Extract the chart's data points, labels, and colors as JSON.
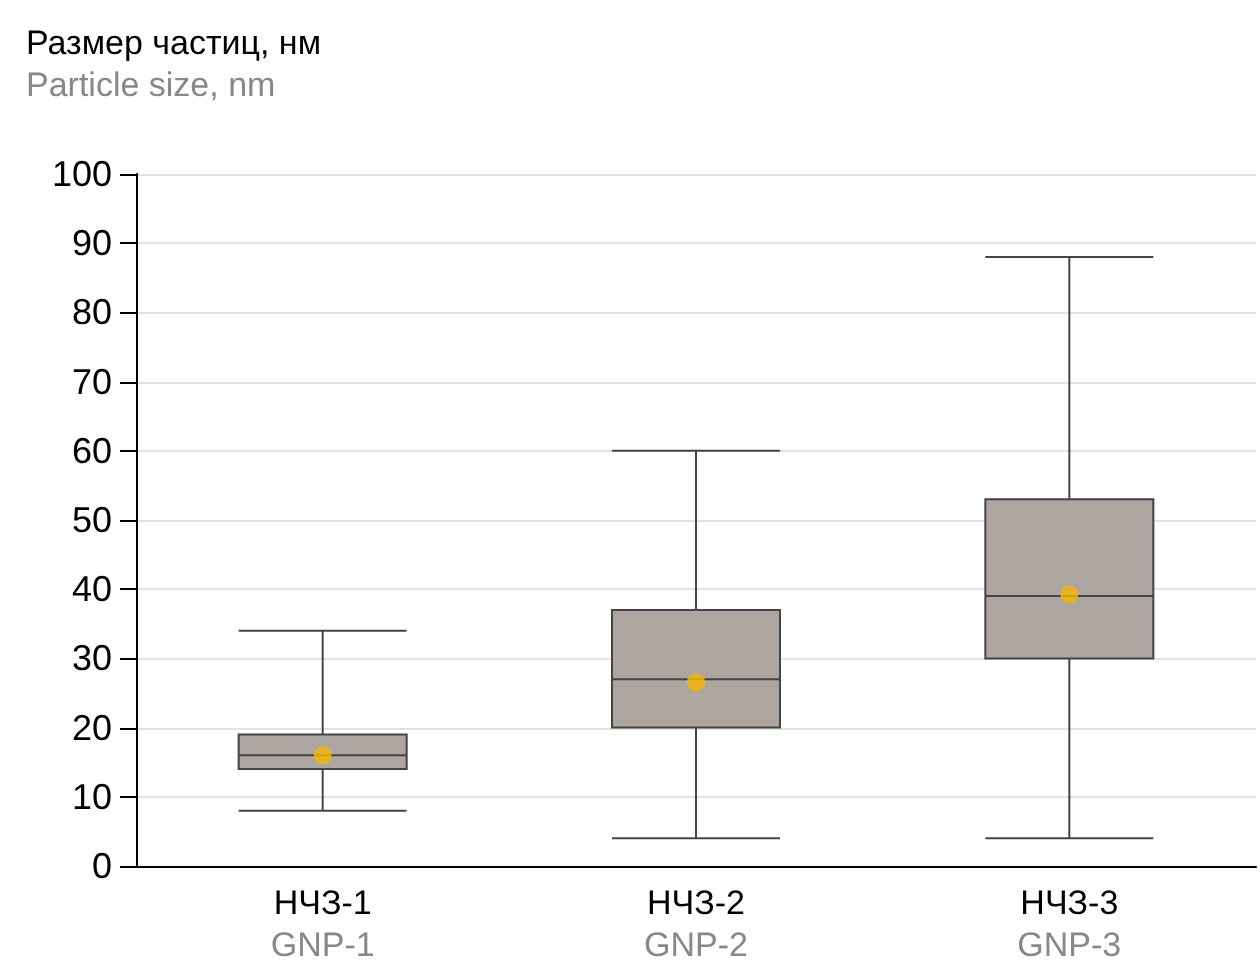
{
  "chart_data": {
    "type": "box",
    "title": "Размер частиц, нм",
    "subtitle": "Particle size, nm",
    "categories": [
      "НЧЗ-1\nGNP-1",
      "НЧЗ-2\nGNP-2",
      "НЧЗ-3\nGNP-3"
    ],
    "series": [
      {
        "color": "#ada5a0",
        "boxes": [
          {
            "low": 8,
            "q1": 14,
            "median": 16,
            "q3": 19,
            "high": 34,
            "mean": 16
          },
          {
            "low": 4,
            "q1": 20,
            "median": 27,
            "q3": 37,
            "high": 60,
            "mean": 26.6
          },
          {
            "low": 4,
            "q1": 30,
            "median": 39,
            "q3": 53,
            "high": 88,
            "mean": 39.3
          }
        ]
      }
    ],
    "ylim": [
      0,
      100
    ],
    "yticks": [
      0,
      10,
      20,
      30,
      40,
      50,
      60,
      70,
      80,
      90,
      100
    ],
    "grid": "y"
  }
}
